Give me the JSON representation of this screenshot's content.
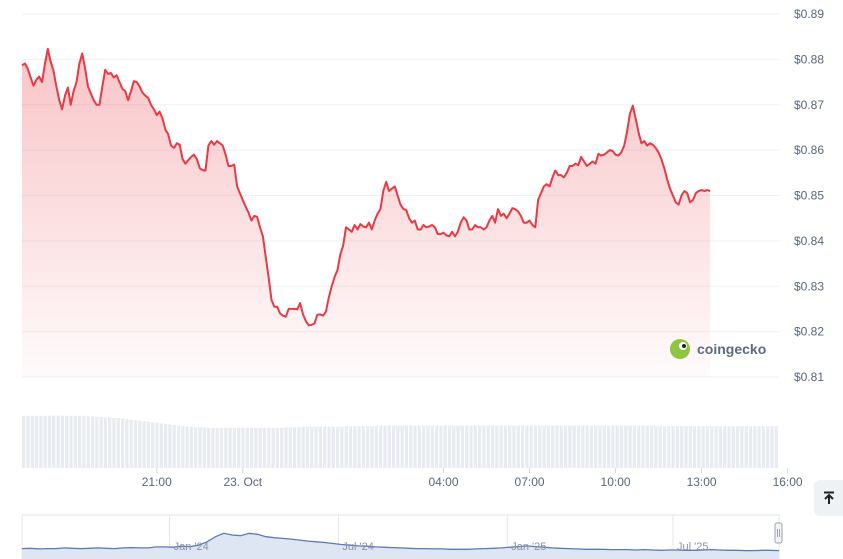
{
  "chart_data": {
    "type": "area",
    "y_ticks": [
      "$0.89",
      "$0.88",
      "$0.87",
      "$0.86",
      "$0.85",
      "$0.84",
      "$0.83",
      "$0.82",
      "$0.81"
    ],
    "ylim": [
      0.81,
      0.89
    ],
    "x_ticks": [
      "21:00",
      "23. Oct",
      "04:00",
      "07:00",
      "10:00",
      "13:00",
      "16:00"
    ],
    "x_tick_times": [
      3.0,
      6.0,
      13.0,
      16.0,
      19.0,
      22.0,
      25.0
    ],
    "xlim": [
      -1.7,
      24.7
    ],
    "series": [
      {
        "price": [
          [
            -1.7,
            0.8787
          ],
          [
            -1.6,
            0.8791
          ],
          [
            -1.5,
            0.878
          ],
          [
            -1.4,
            0.876
          ],
          [
            -1.3,
            0.8742
          ],
          [
            -1.2,
            0.8755
          ],
          [
            -1.1,
            0.8762
          ],
          [
            -1.0,
            0.875
          ],
          [
            -0.9,
            0.879
          ],
          [
            -0.8,
            0.8823
          ],
          [
            -0.7,
            0.8795
          ],
          [
            -0.6,
            0.8775
          ],
          [
            -0.5,
            0.874
          ],
          [
            -0.4,
            0.871
          ],
          [
            -0.3,
            0.869
          ],
          [
            -0.2,
            0.872
          ],
          [
            -0.1,
            0.8738
          ],
          [
            0.0,
            0.87
          ],
          [
            0.1,
            0.873
          ],
          [
            0.2,
            0.875
          ],
          [
            0.3,
            0.879
          ],
          [
            0.4,
            0.8813
          ],
          [
            0.5,
            0.878
          ],
          [
            0.6,
            0.874
          ],
          [
            0.7,
            0.8725
          ],
          [
            0.8,
            0.871
          ],
          [
            0.9,
            0.87
          ],
          [
            1.0,
            0.87
          ],
          [
            1.1,
            0.874
          ],
          [
            1.2,
            0.8777
          ],
          [
            1.3,
            0.8768
          ],
          [
            1.4,
            0.877
          ],
          [
            1.5,
            0.876
          ],
          [
            1.6,
            0.8765
          ],
          [
            1.7,
            0.875
          ],
          [
            1.8,
            0.8735
          ],
          [
            1.9,
            0.873
          ],
          [
            2.0,
            0.871
          ],
          [
            2.1,
            0.873
          ],
          [
            2.2,
            0.8752
          ],
          [
            2.3,
            0.875
          ],
          [
            2.4,
            0.874
          ],
          [
            2.5,
            0.8727
          ],
          [
            2.6,
            0.872
          ],
          [
            2.7,
            0.8715
          ],
          [
            2.8,
            0.87
          ],
          [
            2.9,
            0.869
          ],
          [
            3.0,
            0.8677
          ],
          [
            3.1,
            0.8685
          ],
          [
            3.2,
            0.867
          ],
          [
            3.3,
            0.8645
          ],
          [
            3.4,
            0.8635
          ],
          [
            3.5,
            0.861
          ],
          [
            3.6,
            0.8605
          ],
          [
            3.7,
            0.8615
          ],
          [
            3.8,
            0.8612
          ],
          [
            3.9,
            0.858
          ],
          [
            4.0,
            0.857
          ],
          [
            4.1,
            0.8578
          ],
          [
            4.2,
            0.8585
          ],
          [
            4.3,
            0.859
          ],
          [
            4.4,
            0.858
          ],
          [
            4.5,
            0.856
          ],
          [
            4.6,
            0.8556
          ],
          [
            4.7,
            0.8555
          ],
          [
            4.8,
            0.861
          ],
          [
            4.9,
            0.862
          ],
          [
            5.0,
            0.8612
          ],
          [
            5.1,
            0.862
          ],
          [
            5.2,
            0.8615
          ],
          [
            5.3,
            0.861
          ],
          [
            5.4,
            0.859
          ],
          [
            5.5,
            0.8565
          ],
          [
            5.6,
            0.8565
          ],
          [
            5.7,
            0.8568
          ],
          [
            5.8,
            0.852
          ],
          [
            5.9,
            0.8505
          ],
          [
            6.0,
            0.849
          ],
          [
            6.1,
            0.8475
          ],
          [
            6.2,
            0.8462
          ],
          [
            6.3,
            0.8445
          ],
          [
            6.4,
            0.8455
          ],
          [
            6.5,
            0.8453
          ],
          [
            6.6,
            0.843
          ],
          [
            6.7,
            0.841
          ],
          [
            6.8,
            0.8365
          ],
          [
            6.9,
            0.832
          ],
          [
            7.0,
            0.827
          ],
          [
            7.1,
            0.8255
          ],
          [
            7.2,
            0.8255
          ],
          [
            7.3,
            0.824
          ],
          [
            7.4,
            0.8235
          ],
          [
            7.5,
            0.8233
          ],
          [
            7.6,
            0.825
          ],
          [
            7.7,
            0.825
          ],
          [
            7.8,
            0.825
          ],
          [
            7.9,
            0.8249
          ],
          [
            8.0,
            0.8263
          ],
          [
            8.1,
            0.8238
          ],
          [
            8.2,
            0.8223
          ],
          [
            8.3,
            0.8214
          ],
          [
            8.4,
            0.8215
          ],
          [
            8.5,
            0.8218
          ],
          [
            8.6,
            0.8237
          ],
          [
            8.7,
            0.8238
          ],
          [
            8.8,
            0.8235
          ],
          [
            8.9,
            0.8244
          ],
          [
            9.0,
            0.8275
          ],
          [
            9.1,
            0.83
          ],
          [
            9.2,
            0.832
          ],
          [
            9.3,
            0.8335
          ],
          [
            9.4,
            0.837
          ],
          [
            9.5,
            0.839
          ],
          [
            9.6,
            0.843
          ],
          [
            9.7,
            0.8425
          ],
          [
            9.8,
            0.842
          ],
          [
            9.9,
            0.8435
          ],
          [
            10.0,
            0.8425
          ],
          [
            10.1,
            0.8437
          ],
          [
            10.2,
            0.8432
          ],
          [
            10.3,
            0.843
          ],
          [
            10.4,
            0.844
          ],
          [
            10.5,
            0.8425
          ],
          [
            10.6,
            0.8445
          ],
          [
            10.7,
            0.846
          ],
          [
            10.8,
            0.847
          ],
          [
            10.9,
            0.851
          ],
          [
            11.0,
            0.853
          ],
          [
            11.1,
            0.851
          ],
          [
            11.2,
            0.8515
          ],
          [
            11.3,
            0.852
          ],
          [
            11.4,
            0.85
          ],
          [
            11.5,
            0.848
          ],
          [
            11.6,
            0.847
          ],
          [
            11.7,
            0.8468
          ],
          [
            11.8,
            0.845
          ],
          [
            11.9,
            0.844
          ],
          [
            12.0,
            0.8445
          ],
          [
            12.1,
            0.8425
          ],
          [
            12.2,
            0.8425
          ],
          [
            12.3,
            0.8435
          ],
          [
            12.4,
            0.843
          ],
          [
            12.5,
            0.8432
          ],
          [
            12.6,
            0.8435
          ],
          [
            12.7,
            0.843
          ],
          [
            12.8,
            0.8415
          ],
          [
            12.9,
            0.8415
          ],
          [
            13.0,
            0.8418
          ],
          [
            13.1,
            0.8412
          ],
          [
            13.2,
            0.841
          ],
          [
            13.3,
            0.842
          ],
          [
            13.4,
            0.841
          ],
          [
            13.5,
            0.842
          ],
          [
            13.6,
            0.844
          ],
          [
            13.7,
            0.8452
          ],
          [
            13.8,
            0.8445
          ],
          [
            13.9,
            0.8425
          ],
          [
            14.0,
            0.8425
          ],
          [
            14.1,
            0.8435
          ],
          [
            14.2,
            0.843
          ],
          [
            14.3,
            0.843
          ],
          [
            14.4,
            0.8425
          ],
          [
            14.5,
            0.843
          ],
          [
            14.6,
            0.8445
          ],
          [
            14.7,
            0.8455
          ],
          [
            14.8,
            0.844
          ],
          [
            14.9,
            0.847
          ],
          [
            15.0,
            0.8455
          ],
          [
            15.1,
            0.846
          ],
          [
            15.2,
            0.845
          ],
          [
            15.3,
            0.846
          ],
          [
            15.4,
            0.8472
          ],
          [
            15.5,
            0.847
          ],
          [
            15.6,
            0.8465
          ],
          [
            15.7,
            0.8455
          ],
          [
            15.8,
            0.844
          ],
          [
            15.9,
            0.844
          ],
          [
            16.0,
            0.8445
          ],
          [
            16.1,
            0.8435
          ],
          [
            16.2,
            0.843
          ],
          [
            16.3,
            0.849
          ],
          [
            16.4,
            0.8505
          ],
          [
            16.5,
            0.852
          ],
          [
            16.6,
            0.8525
          ],
          [
            16.7,
            0.852
          ],
          [
            16.8,
            0.854
          ],
          [
            16.9,
            0.8555
          ],
          [
            17.0,
            0.8545
          ],
          [
            17.1,
            0.8545
          ],
          [
            17.2,
            0.854
          ],
          [
            17.3,
            0.855
          ],
          [
            17.4,
            0.8565
          ],
          [
            17.5,
            0.8565
          ],
          [
            17.6,
            0.857
          ],
          [
            17.7,
            0.8567
          ],
          [
            17.8,
            0.8585
          ],
          [
            17.9,
            0.8575
          ],
          [
            18.0,
            0.8565
          ],
          [
            18.1,
            0.857
          ],
          [
            18.2,
            0.8575
          ],
          [
            18.3,
            0.857
          ],
          [
            18.4,
            0.8592
          ],
          [
            18.5,
            0.8588
          ],
          [
            18.6,
            0.859
          ],
          [
            18.7,
            0.8595
          ],
          [
            18.8,
            0.86
          ],
          [
            18.9,
            0.8598
          ],
          [
            19.0,
            0.859
          ],
          [
            19.1,
            0.8588
          ],
          [
            19.2,
            0.8595
          ],
          [
            19.3,
            0.861
          ],
          [
            19.4,
            0.864
          ],
          [
            19.5,
            0.868
          ],
          [
            19.6,
            0.8698
          ],
          [
            19.7,
            0.867
          ],
          [
            19.8,
            0.864
          ],
          [
            19.9,
            0.8615
          ],
          [
            20.0,
            0.862
          ],
          [
            20.1,
            0.861
          ],
          [
            20.2,
            0.8615
          ],
          [
            20.3,
            0.8612
          ],
          [
            20.4,
            0.8605
          ],
          [
            20.5,
            0.8595
          ],
          [
            20.6,
            0.858
          ],
          [
            20.7,
            0.856
          ],
          [
            20.8,
            0.8535
          ],
          [
            20.9,
            0.8515
          ],
          [
            21.0,
            0.85
          ],
          [
            21.1,
            0.8485
          ],
          [
            21.2,
            0.848
          ],
          [
            21.3,
            0.85
          ],
          [
            21.4,
            0.851
          ],
          [
            21.5,
            0.8505
          ],
          [
            21.6,
            0.8485
          ],
          [
            21.7,
            0.849
          ],
          [
            21.8,
            0.8505
          ],
          [
            21.9,
            0.851
          ],
          [
            22.0,
            0.8512
          ],
          [
            22.1,
            0.851
          ],
          [
            22.2,
            0.8512
          ],
          [
            22.3,
            0.851
          ]
        ],
        "volume": [
          0.95,
          0.95,
          0.95,
          0.95,
          0.95,
          0.95,
          0.95,
          0.95,
          0.95,
          0.95,
          0.95,
          0.95,
          0.95,
          0.95,
          0.95,
          0.94,
          0.94,
          0.93,
          0.93,
          0.92,
          0.92,
          0.91,
          0.91,
          0.9,
          0.89,
          0.88,
          0.87,
          0.86,
          0.85,
          0.84,
          0.83,
          0.82,
          0.81,
          0.8,
          0.79,
          0.78,
          0.77,
          0.76,
          0.75,
          0.75,
          0.74,
          0.74,
          0.74,
          0.73,
          0.73,
          0.73,
          0.73,
          0.73,
          0.73,
          0.73,
          0.73,
          0.73,
          0.73,
          0.73,
          0.73,
          0.73,
          0.73,
          0.73,
          0.73,
          0.73,
          0.73,
          0.74,
          0.74,
          0.74,
          0.74,
          0.75,
          0.75,
          0.75,
          0.75,
          0.75,
          0.75,
          0.75,
          0.75,
          0.75,
          0.75,
          0.76,
          0.76,
          0.76,
          0.76,
          0.76,
          0.76,
          0.76,
          0.77,
          0.77,
          0.77,
          0.77,
          0.77,
          0.77,
          0.77,
          0.77,
          0.77,
          0.77,
          0.77,
          0.77,
          0.77,
          0.77,
          0.77,
          0.77,
          0.77,
          0.77,
          0.77,
          0.77,
          0.77,
          0.77,
          0.77,
          0.77,
          0.77,
          0.77,
          0.77,
          0.77,
          0.77,
          0.77,
          0.77,
          0.77,
          0.77,
          0.77,
          0.77,
          0.77,
          0.77,
          0.77,
          0.77,
          0.77,
          0.77,
          0.77,
          0.77,
          0.77,
          0.77,
          0.77,
          0.77,
          0.77,
          0.77,
          0.77,
          0.77,
          0.77,
          0.77,
          0.77,
          0.77,
          0.77,
          0.77,
          0.77,
          0.77,
          0.77,
          0.77,
          0.77,
          0.77,
          0.77,
          0.77,
          0.77,
          0.77,
          0.76,
          0.76,
          0.76,
          0.76,
          0.76,
          0.76,
          0.76,
          0.76,
          0.76,
          0.76,
          0.76,
          0.76,
          0.76,
          0.76,
          0.76,
          0.76,
          0.76,
          0.76,
          0.76,
          0.76,
          0.76,
          0.76,
          0.76,
          0.76,
          0.76,
          0.76,
          0.76
        ]
      }
    ],
    "navigator": {
      "labels": [
        "Jan '24",
        "Jul '24",
        "Jan '25",
        "Jul '25"
      ],
      "values": [
        0.1,
        0.11,
        0.09,
        0.1,
        0.1,
        0.12,
        0.11,
        0.1,
        0.11,
        0.12,
        0.11,
        0.1,
        0.12,
        0.13,
        0.12,
        0.12,
        0.15,
        0.15,
        0.14,
        0.17,
        0.16,
        0.2,
        0.3,
        0.45,
        0.55,
        0.5,
        0.48,
        0.55,
        0.52,
        0.45,
        0.42,
        0.4,
        0.38,
        0.35,
        0.32,
        0.3,
        0.28,
        0.25,
        0.22,
        0.2,
        0.18,
        0.17,
        0.15,
        0.14,
        0.13,
        0.12,
        0.11,
        0.1,
        0.1,
        0.09,
        0.09,
        0.08,
        0.08,
        0.08,
        0.09,
        0.1,
        0.11,
        0.12,
        0.14,
        0.16,
        0.18,
        0.16,
        0.14,
        0.12,
        0.11,
        0.1,
        0.09,
        0.08,
        0.08,
        0.08,
        0.07,
        0.07,
        0.07,
        0.06,
        0.07,
        0.06,
        0.05,
        0.06,
        0.06,
        0.05,
        0.05,
        0.06,
        0.07,
        0.06,
        0.05,
        0.05,
        0.04,
        0.04,
        0.05,
        0.05,
        0.04
      ]
    },
    "line_color": "#ea3943",
    "grid": true
  },
  "logo": {
    "text": "coingecko"
  },
  "scroll_button": {
    "icon": "arrow-to-top-icon"
  }
}
